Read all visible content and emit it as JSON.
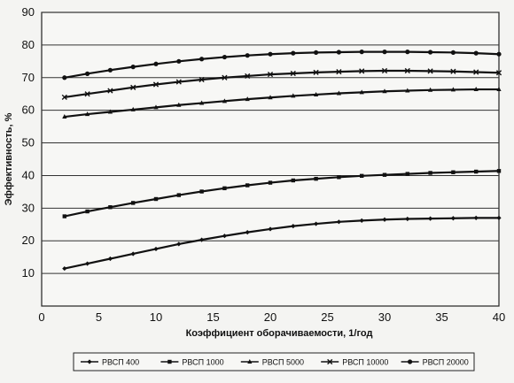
{
  "chart_data": {
    "type": "line",
    "title": "",
    "xlabel": "Коэффициент оборачиваемости, 1/год",
    "ylabel": "Эффективность, %",
    "xlim": [
      0,
      40
    ],
    "ylim": [
      0,
      90
    ],
    "x_ticks": [
      0,
      5,
      10,
      15,
      20,
      25,
      30,
      35,
      40
    ],
    "y_ticks": [
      10,
      20,
      30,
      40,
      50,
      60,
      70,
      80,
      90
    ],
    "grid": "horizontal",
    "legend_position": "bottom",
    "line_color": "#111111",
    "x": [
      2,
      4,
      6,
      8,
      10,
      12,
      14,
      16,
      18,
      20,
      22,
      24,
      26,
      28,
      30,
      32,
      34,
      36,
      38,
      40
    ],
    "series": [
      {
        "name": "РВСП 400",
        "marker": "diamond",
        "values": [
          11.5,
          13,
          14.5,
          16,
          17.5,
          19,
          20.3,
          21.5,
          22.6,
          23.6,
          24.5,
          25.2,
          25.8,
          26.2,
          26.5,
          26.7,
          26.8,
          26.9,
          27,
          27
        ]
      },
      {
        "name": "РВСП 1000",
        "marker": "square",
        "values": [
          27.5,
          29,
          30.3,
          31.6,
          32.8,
          34,
          35.1,
          36.1,
          37,
          37.8,
          38.5,
          39,
          39.5,
          39.9,
          40.2,
          40.5,
          40.8,
          41,
          41.2,
          41.4
        ]
      },
      {
        "name": "РВСП 5000",
        "marker": "triangle",
        "values": [
          58,
          58.8,
          59.5,
          60.2,
          60.9,
          61.6,
          62.2,
          62.8,
          63.4,
          63.9,
          64.4,
          64.8,
          65.2,
          65.5,
          65.8,
          66,
          66.2,
          66.3,
          66.4,
          66.4
        ]
      },
      {
        "name": "РВСП 10000",
        "marker": "x",
        "values": [
          64,
          65,
          66,
          67,
          67.9,
          68.7,
          69.4,
          70,
          70.5,
          71,
          71.3,
          71.6,
          71.8,
          72,
          72.1,
          72.1,
          72,
          71.9,
          71.7,
          71.5
        ]
      },
      {
        "name": "РВСП 20000",
        "marker": "circle",
        "values": [
          70,
          71.2,
          72.3,
          73.3,
          74.2,
          75,
          75.7,
          76.3,
          76.8,
          77.2,
          77.5,
          77.7,
          77.8,
          77.9,
          77.9,
          77.9,
          77.8,
          77.7,
          77.5,
          77.2
        ]
      }
    ]
  }
}
